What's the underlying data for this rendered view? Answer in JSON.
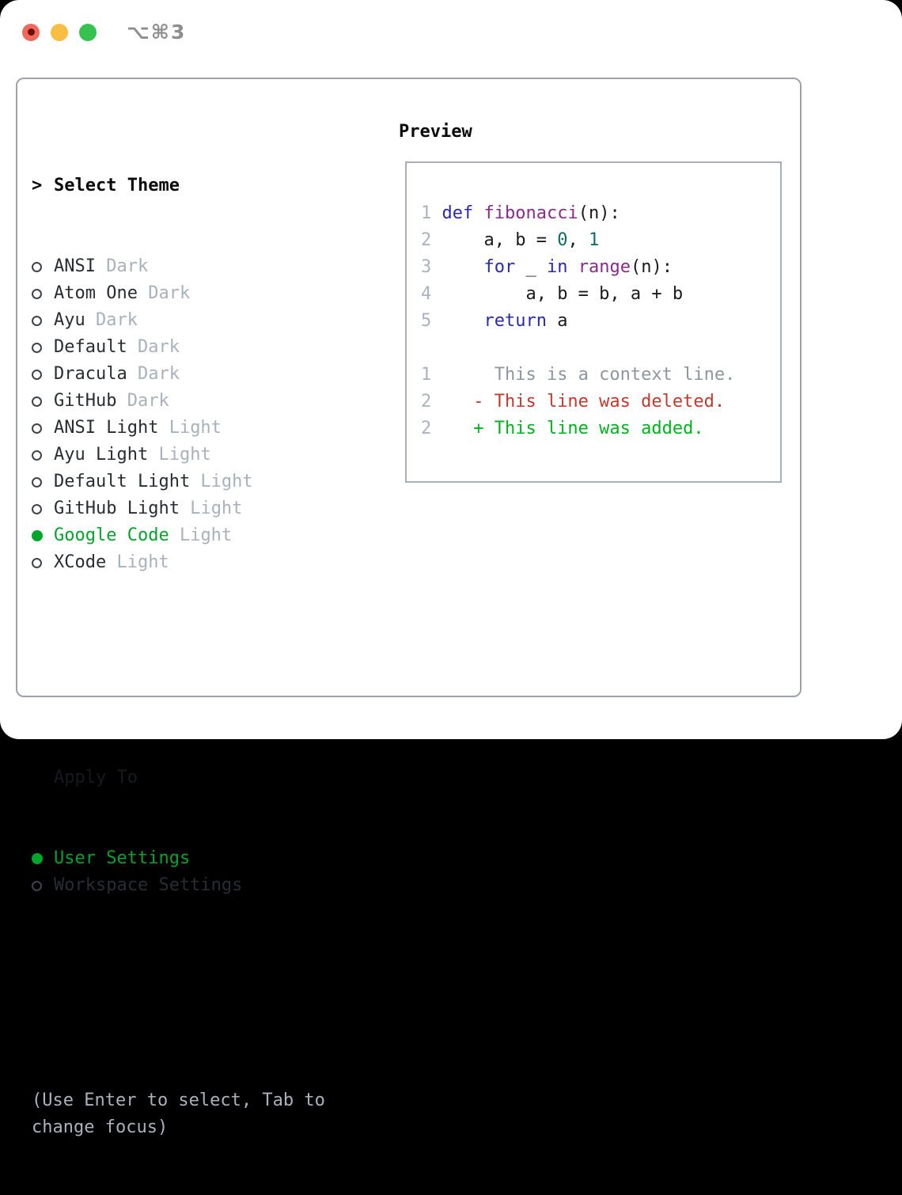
{
  "window": {
    "title": "⌥⌘3"
  },
  "theme_selector": {
    "cursor": ">",
    "header": "Select Theme",
    "items": [
      {
        "name": "ANSI",
        "variant": "Dark",
        "selected": false
      },
      {
        "name": "Atom One",
        "variant": "Dark",
        "selected": false
      },
      {
        "name": "Ayu",
        "variant": "Dark",
        "selected": false
      },
      {
        "name": "Default",
        "variant": "Dark",
        "selected": false
      },
      {
        "name": "Dracula",
        "variant": "Dark",
        "selected": false
      },
      {
        "name": "GitHub",
        "variant": "Dark",
        "selected": false
      },
      {
        "name": "ANSI Light",
        "variant": "Light",
        "selected": false
      },
      {
        "name": "Ayu Light",
        "variant": "Light",
        "selected": false
      },
      {
        "name": "Default Light",
        "variant": "Light",
        "selected": false
      },
      {
        "name": "GitHub Light",
        "variant": "Light",
        "selected": false
      },
      {
        "name": "Google Code",
        "variant": "Light",
        "selected": true
      },
      {
        "name": "XCode",
        "variant": "Light",
        "selected": false
      }
    ]
  },
  "apply_to": {
    "header": "Apply To",
    "items": [
      {
        "name": "User Settings",
        "selected": true
      },
      {
        "name": "Workspace Settings",
        "selected": false
      }
    ]
  },
  "help_text": "(Use Enter to select, Tab to change focus)",
  "preview": {
    "header": "Preview",
    "code_lines": [
      {
        "num": "1",
        "tokens": [
          [
            "kw",
            "def"
          ],
          [
            "pl",
            " "
          ],
          [
            "fn",
            "fibonacci"
          ],
          [
            "pl",
            "(n):"
          ]
        ]
      },
      {
        "num": "2",
        "tokens": [
          [
            "pl",
            "    a, b = "
          ],
          [
            "lit",
            "0"
          ],
          [
            "pl",
            ", "
          ],
          [
            "lit",
            "1"
          ]
        ]
      },
      {
        "num": "3",
        "tokens": [
          [
            "pl",
            "    "
          ],
          [
            "kw",
            "for"
          ],
          [
            "pl",
            " _ "
          ],
          [
            "kw",
            "in"
          ],
          [
            "pl",
            " "
          ],
          [
            "fn",
            "range"
          ],
          [
            "pl",
            "(n):"
          ]
        ]
      },
      {
        "num": "4",
        "tokens": [
          [
            "pl",
            "        a, b = b, a + b"
          ]
        ]
      },
      {
        "num": "5",
        "tokens": [
          [
            "pl",
            "    "
          ],
          [
            "kw",
            "return"
          ],
          [
            "pl",
            " a"
          ]
        ]
      }
    ],
    "diff_lines": [
      {
        "num": "1",
        "marker": " ",
        "kind": "context",
        "text": "This is a context line."
      },
      {
        "num": "2",
        "marker": "-",
        "kind": "deleted",
        "text": "This line was deleted."
      },
      {
        "num": "2",
        "marker": "+",
        "kind": "added",
        "text": "This line was added."
      }
    ]
  },
  "colors": {
    "green-accent": "#00A52B",
    "green-added": "#00B31E",
    "red-deleted": "#C23A2B",
    "gray-muted": "#A9B1BC",
    "gray-context": "#8E969F",
    "line-number": "#A9B2C0",
    "kw-color": "#2A2BA8",
    "fn-color": "#8A2B8A",
    "lit-color": "#116B6B",
    "code-plain": "#1A1A1A",
    "text-dark": "#282D33",
    "panel-border": "#9CA3AE",
    "preview-border": "#A8AFB9",
    "title-gray": "#8E8E8E",
    "traffic-red": "#F1685C",
    "traffic-red-dot": "#6E0F05",
    "traffic-yellow": "#F7BD45",
    "traffic-green": "#36C24E"
  }
}
